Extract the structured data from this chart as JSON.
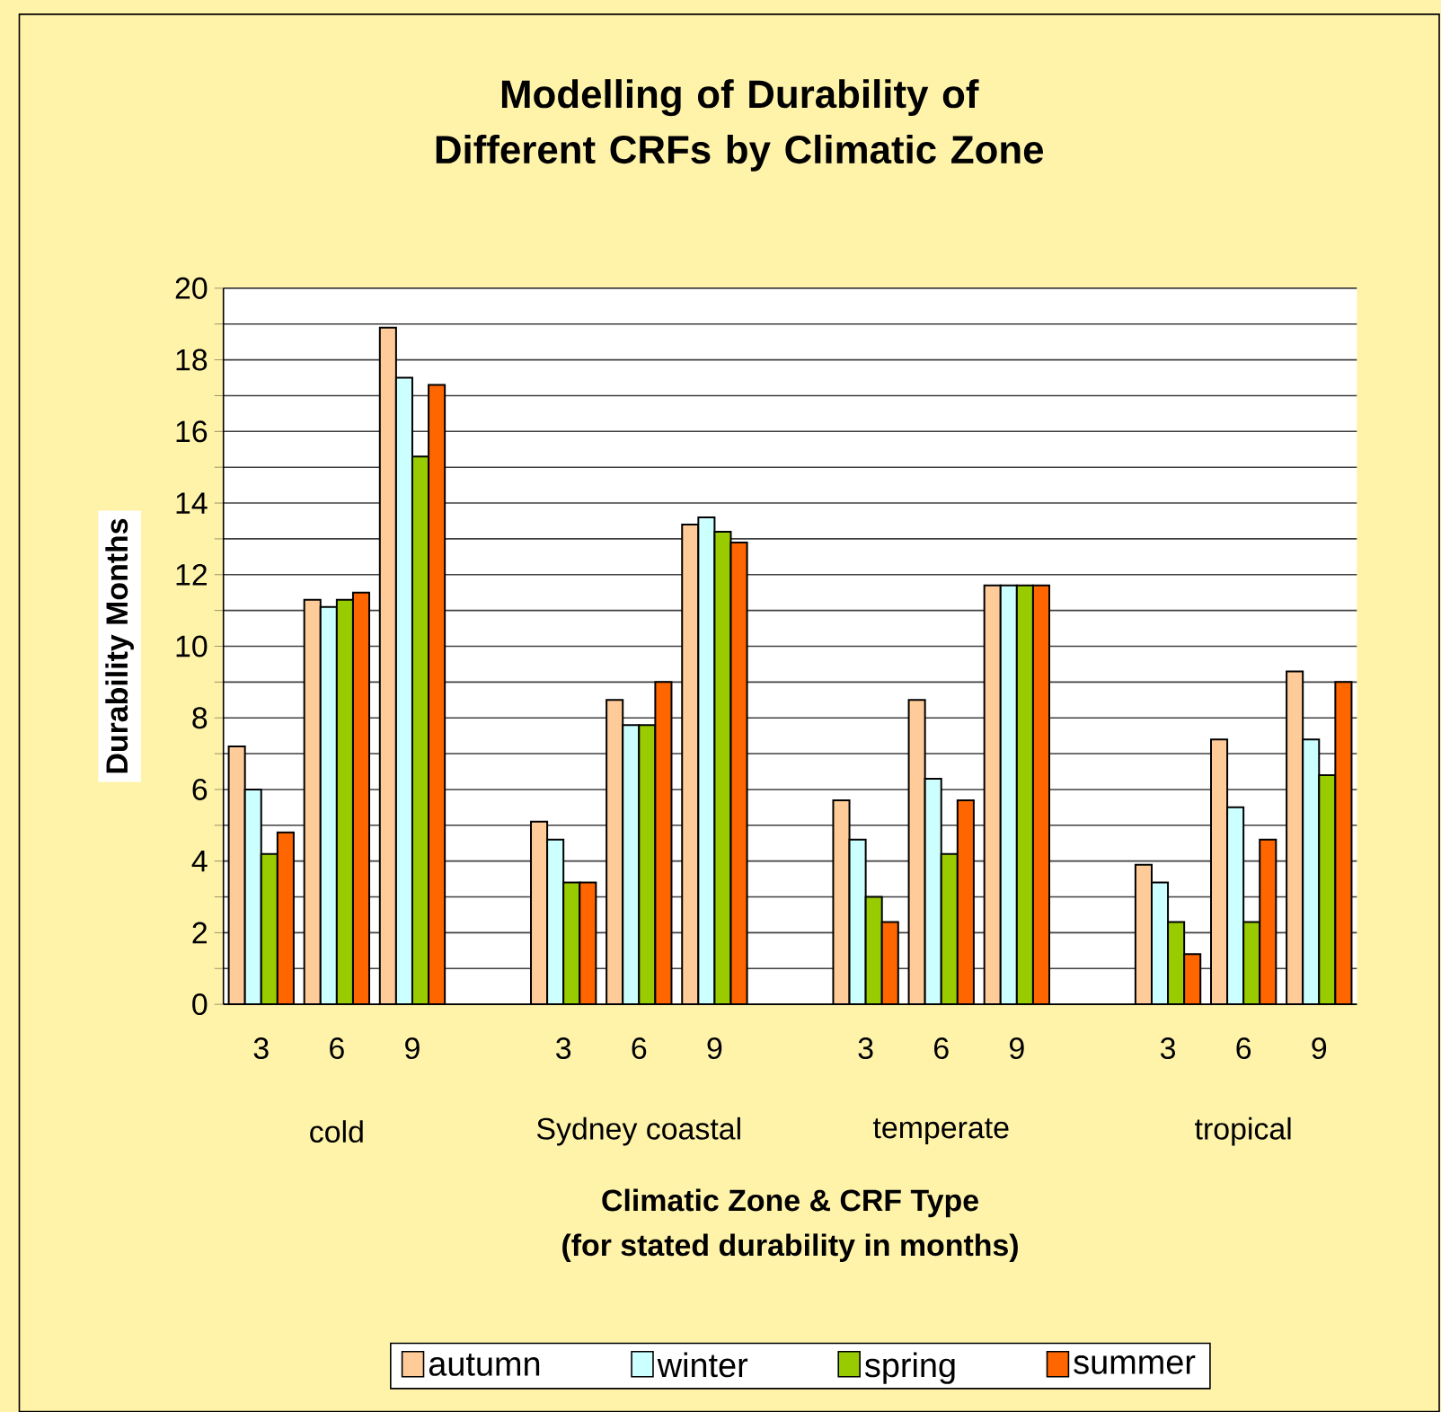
{
  "chart_data": {
    "type": "bar",
    "title": "Modelling of Durability of Different CRFs by Climatic Zone",
    "xlabel": "Climatic Zone & CRF Type",
    "ylabel": "Durability Months",
    "annotations": [
      "cold",
      "Sydney coastal",
      "temperate",
      "tropical",
      "(for stated durability in months)"
    ],
    "categories": [
      "3",
      "6",
      "9",
      null,
      "3",
      "6",
      "9",
      null,
      "3",
      "6",
      "9",
      null,
      "3",
      "6",
      "9"
    ],
    "series": [
      {
        "name": "autumn",
        "color": "#ffcc99",
        "values": [
          7.2,
          11.3,
          18.9,
          null,
          5.1,
          8.5,
          13.4,
          null,
          5.7,
          8.5,
          11.7,
          null,
          3.9,
          7.4,
          9.3
        ]
      },
      {
        "name": "winter",
        "color": "#ccffff",
        "values": [
          6.0,
          11.1,
          17.5,
          null,
          4.6,
          7.8,
          13.6,
          null,
          4.6,
          6.3,
          11.7,
          null,
          3.4,
          5.5,
          7.4
        ]
      },
      {
        "name": "spring",
        "color": "#99cc00",
        "values": [
          4.2,
          11.3,
          15.3,
          null,
          3.4,
          7.8,
          13.2,
          null,
          3.0,
          4.2,
          11.7,
          null,
          2.3,
          2.3,
          6.4
        ]
      },
      {
        "name": "summer",
        "color": "#ff6600",
        "values": [
          4.8,
          11.5,
          17.3,
          null,
          3.4,
          9.0,
          12.9,
          null,
          2.3,
          5.7,
          11.7,
          null,
          1.4,
          4.6,
          9.0
        ]
      }
    ],
    "ylim": [
      0,
      20
    ],
    "yticks": [
      0,
      {
        "value": 1,
        "label": null
      },
      2,
      {
        "value": 3,
        "label": null
      },
      4,
      {
        "value": 5,
        "label": null
      },
      6,
      {
        "value": 7,
        "label": null
      },
      8,
      {
        "value": 9,
        "label": null
      },
      10,
      {
        "value": 11,
        "label": null
      },
      12,
      {
        "value": 13,
        "label": null
      },
      14,
      {
        "value": 15,
        "label": null
      },
      16,
      {
        "value": 17,
        "label": null
      },
      18,
      {
        "value": 19,
        "label": null
      },
      20
    ],
    "grid": "y",
    "legend": "bottom"
  }
}
